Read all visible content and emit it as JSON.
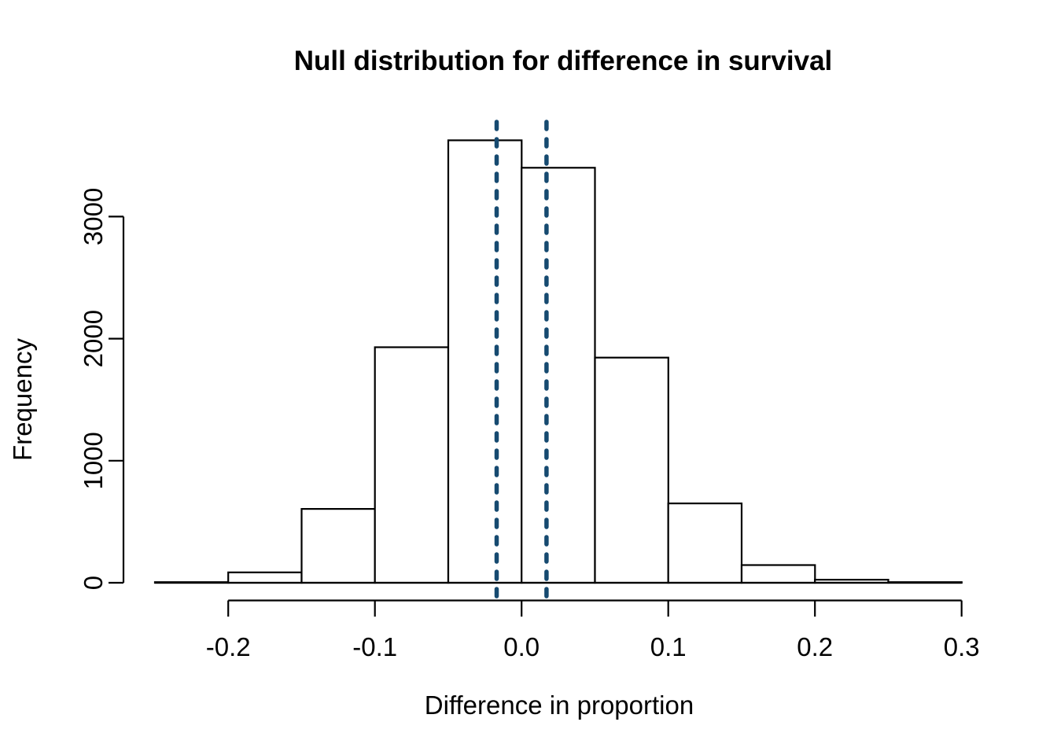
{
  "chart_data": {
    "type": "bar",
    "subtype": "histogram",
    "title": "Null distribution for difference in survival",
    "xlabel": "Difference in proportion",
    "ylabel": "Frequency",
    "bin_edges": [
      -0.25,
      -0.2,
      -0.15,
      -0.1,
      -0.05,
      0.0,
      0.05,
      0.1,
      0.15,
      0.2,
      0.25,
      0.3
    ],
    "counts": [
      5,
      85,
      605,
      1930,
      3625,
      3400,
      1845,
      650,
      145,
      25,
      5
    ],
    "x_ticks": [
      -0.2,
      -0.1,
      0.0,
      0.1,
      0.2,
      0.3
    ],
    "x_tick_labels": [
      "-0.2",
      "-0.1",
      "0.0",
      "0.1",
      "0.2",
      "0.3"
    ],
    "y_ticks": [
      0,
      1000,
      2000,
      3000
    ],
    "y_tick_labels": [
      "0",
      "1000",
      "2000",
      "3000"
    ],
    "xlim": [
      -0.25,
      0.3
    ],
    "ylim": [
      0,
      3000
    ],
    "grid": false,
    "legend": "none",
    "reference_lines": {
      "values": [
        -0.017,
        0.017
      ],
      "style": "dotted",
      "color": "#164A70"
    },
    "colors": {
      "background": "#ffffff",
      "bar_fill": "#ffffff",
      "bar_stroke": "#000000",
      "axis": "#000000",
      "text": "#000000"
    }
  }
}
